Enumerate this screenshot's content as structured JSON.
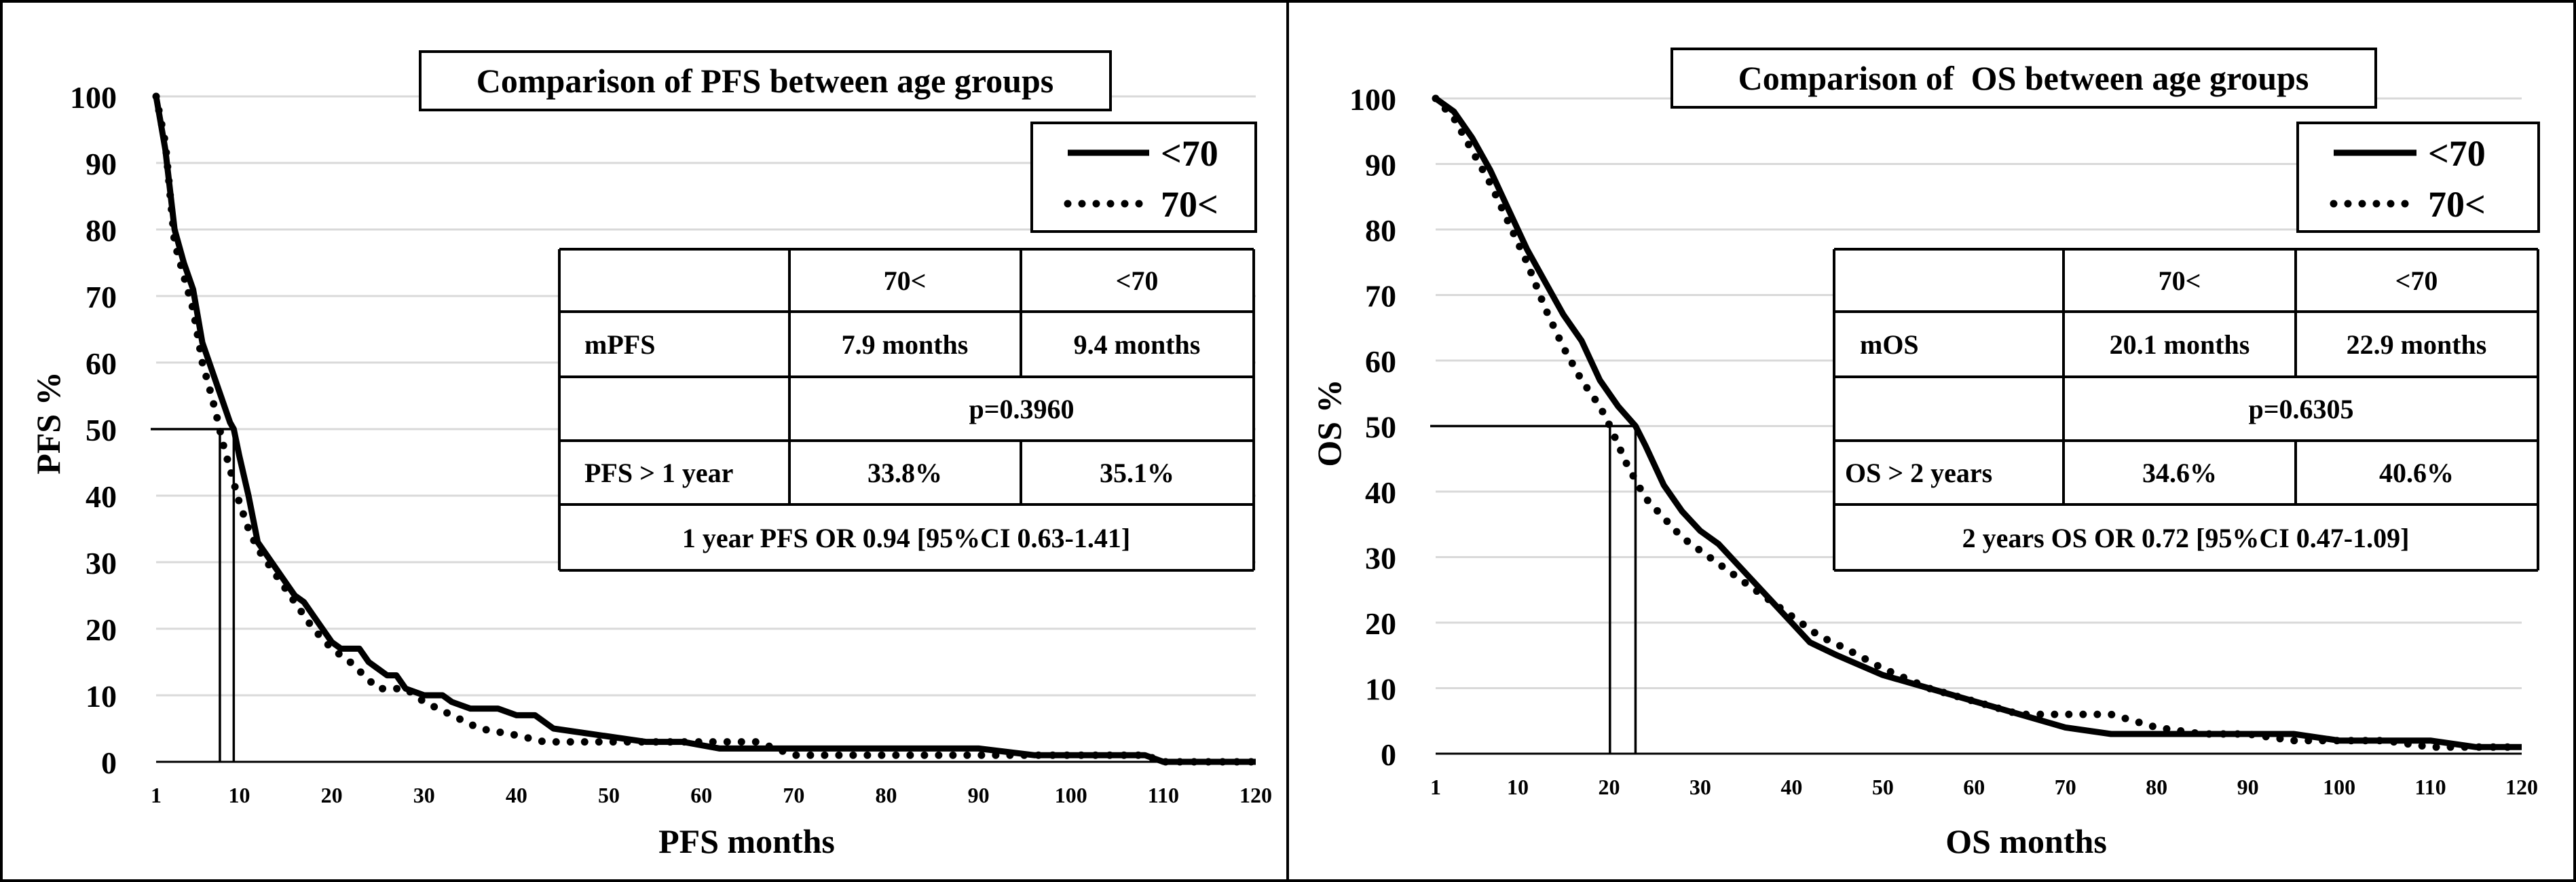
{
  "chart_data": [
    {
      "type": "line",
      "title": "Comparison of PFS between age groups",
      "xlabel": "PFS months",
      "ylabel": "PFS %",
      "xlim": [
        1,
        120
      ],
      "ylim": [
        0,
        100
      ],
      "x_ticks": [
        "1",
        "10",
        "20",
        "30",
        "40",
        "50",
        "60",
        "70",
        "80",
        "90",
        "100",
        "110",
        "120"
      ],
      "y_ticks": [
        "0",
        "10",
        "20",
        "30",
        "40",
        "50",
        "60",
        "70",
        "80",
        "90",
        "100"
      ],
      "grid": true,
      "legend": [
        "<70",
        "70<"
      ],
      "series": [
        {
          "name": "<70",
          "style": "solid",
          "x": [
            1,
            2,
            3,
            4,
            5,
            6,
            7,
            8,
            9,
            9.4,
            10,
            11,
            12,
            13,
            14,
            15,
            16,
            17,
            18,
            19,
            20,
            21,
            22,
            23,
            24,
            25,
            26,
            27,
            28,
            30,
            32,
            33,
            35,
            38,
            40,
            42,
            44,
            49,
            54,
            58,
            62,
            70,
            80,
            90,
            96,
            108,
            110,
            120
          ],
          "y": [
            100,
            92,
            80,
            75,
            71,
            63,
            59,
            55,
            51,
            50,
            46,
            40,
            33,
            31,
            29,
            27,
            25,
            24,
            22,
            20,
            18,
            17,
            17,
            17,
            15,
            14,
            13,
            13,
            11,
            10,
            10,
            9,
            8,
            8,
            7,
            7,
            5,
            4,
            3,
            3,
            2,
            2,
            2,
            2,
            1,
            1,
            0,
            0
          ]
        },
        {
          "name": "70<",
          "style": "dotted",
          "x": [
            1,
            2,
            3,
            4,
            5,
            6,
            7,
            7.9,
            8,
            9,
            10,
            11,
            12,
            13,
            14,
            15,
            16,
            17,
            18,
            20,
            22,
            25,
            28,
            30,
            33,
            36,
            40,
            43,
            50,
            60,
            66,
            70,
            80,
            90,
            95,
            100,
            108,
            110,
            120
          ],
          "y": [
            100,
            93,
            78,
            73,
            68,
            60,
            55,
            50,
            49,
            44,
            39,
            35,
            32,
            30,
            28,
            26,
            24,
            22,
            20,
            17,
            15,
            11,
            11,
            9,
            7,
            5,
            4,
            3,
            3,
            3,
            3,
            1,
            1,
            1,
            1,
            1,
            1,
            0,
            0
          ]
        }
      ],
      "median_lines_x": [
        7.9,
        9.4
      ],
      "table": {
        "header": [
          "",
          "70<",
          "<70"
        ],
        "median_label": "mPFS",
        "median_values": [
          "7.9 months",
          "9.4 months"
        ],
        "p_value": "p=0.3960",
        "rate_label": "PFS > 1 year",
        "rate_values": [
          "33.8%",
          "35.1%"
        ],
        "odds_ratio": "1 year PFS OR 0.94 [95%CI 0.63-1.41]"
      }
    },
    {
      "type": "line",
      "title": "Comparison of  OS between age groups",
      "xlabel": "OS months",
      "ylabel": "OS %",
      "xlim": [
        1,
        120
      ],
      "ylim": [
        0,
        100
      ],
      "x_ticks": [
        "1",
        "10",
        "20",
        "30",
        "40",
        "50",
        "60",
        "70",
        "80",
        "90",
        "100",
        "110",
        "120"
      ],
      "y_ticks": [
        "0",
        "10",
        "20",
        "30",
        "40",
        "50",
        "60",
        "70",
        "80",
        "90",
        "100"
      ],
      "grid": true,
      "legend": [
        "<70",
        "70<"
      ],
      "series": [
        {
          "name": "<70",
          "style": "solid",
          "x": [
            1,
            3,
            5,
            7,
            9,
            11,
            13,
            15,
            17,
            19,
            21,
            22.9,
            24,
            26,
            28,
            30,
            32,
            34,
            36,
            38,
            40,
            42,
            45,
            50,
            55,
            60,
            65,
            70,
            75,
            80,
            90,
            95,
            100,
            105,
            110,
            115,
            120
          ],
          "y": [
            100,
            98,
            94,
            89,
            83,
            77,
            72,
            67,
            63,
            57,
            53,
            50,
            47,
            41,
            37,
            34,
            32,
            29,
            26,
            23,
            20,
            17,
            15,
            12,
            10,
            8,
            6,
            4,
            3,
            3,
            3,
            3,
            2,
            2,
            2,
            1,
            1
          ]
        },
        {
          "name": "70<",
          "style": "dotted",
          "x": [
            1,
            3,
            5,
            7,
            9,
            11,
            13,
            15,
            17,
            19,
            20.1,
            22,
            24,
            26,
            28,
            30,
            32,
            34,
            36,
            38,
            40,
            43,
            46,
            50,
            55,
            60,
            65,
            70,
            75,
            80,
            85,
            90,
            95,
            100,
            105,
            110,
            115,
            120
          ],
          "y": [
            100,
            97,
            92,
            87,
            81,
            75,
            68,
            62,
            57,
            53,
            50,
            44,
            39,
            36,
            33,
            31,
            29,
            27,
            25,
            23,
            21,
            18,
            16,
            13,
            10,
            8,
            6,
            6,
            6,
            4,
            3,
            3,
            2,
            2,
            2,
            1,
            1,
            1
          ]
        }
      ],
      "median_lines_x": [
        20.1,
        22.9
      ],
      "table": {
        "header": [
          "",
          "70<",
          "<70"
        ],
        "median_label": "mOS",
        "median_values": [
          "20.1 months",
          "22.9 months"
        ],
        "p_value": "p=0.6305",
        "rate_label": "OS > 2 years",
        "rate_values": [
          "34.6%",
          "40.6%"
        ],
        "odds_ratio": "2 years OS OR 0.72 [95%CI 0.47-1.09]"
      }
    }
  ]
}
